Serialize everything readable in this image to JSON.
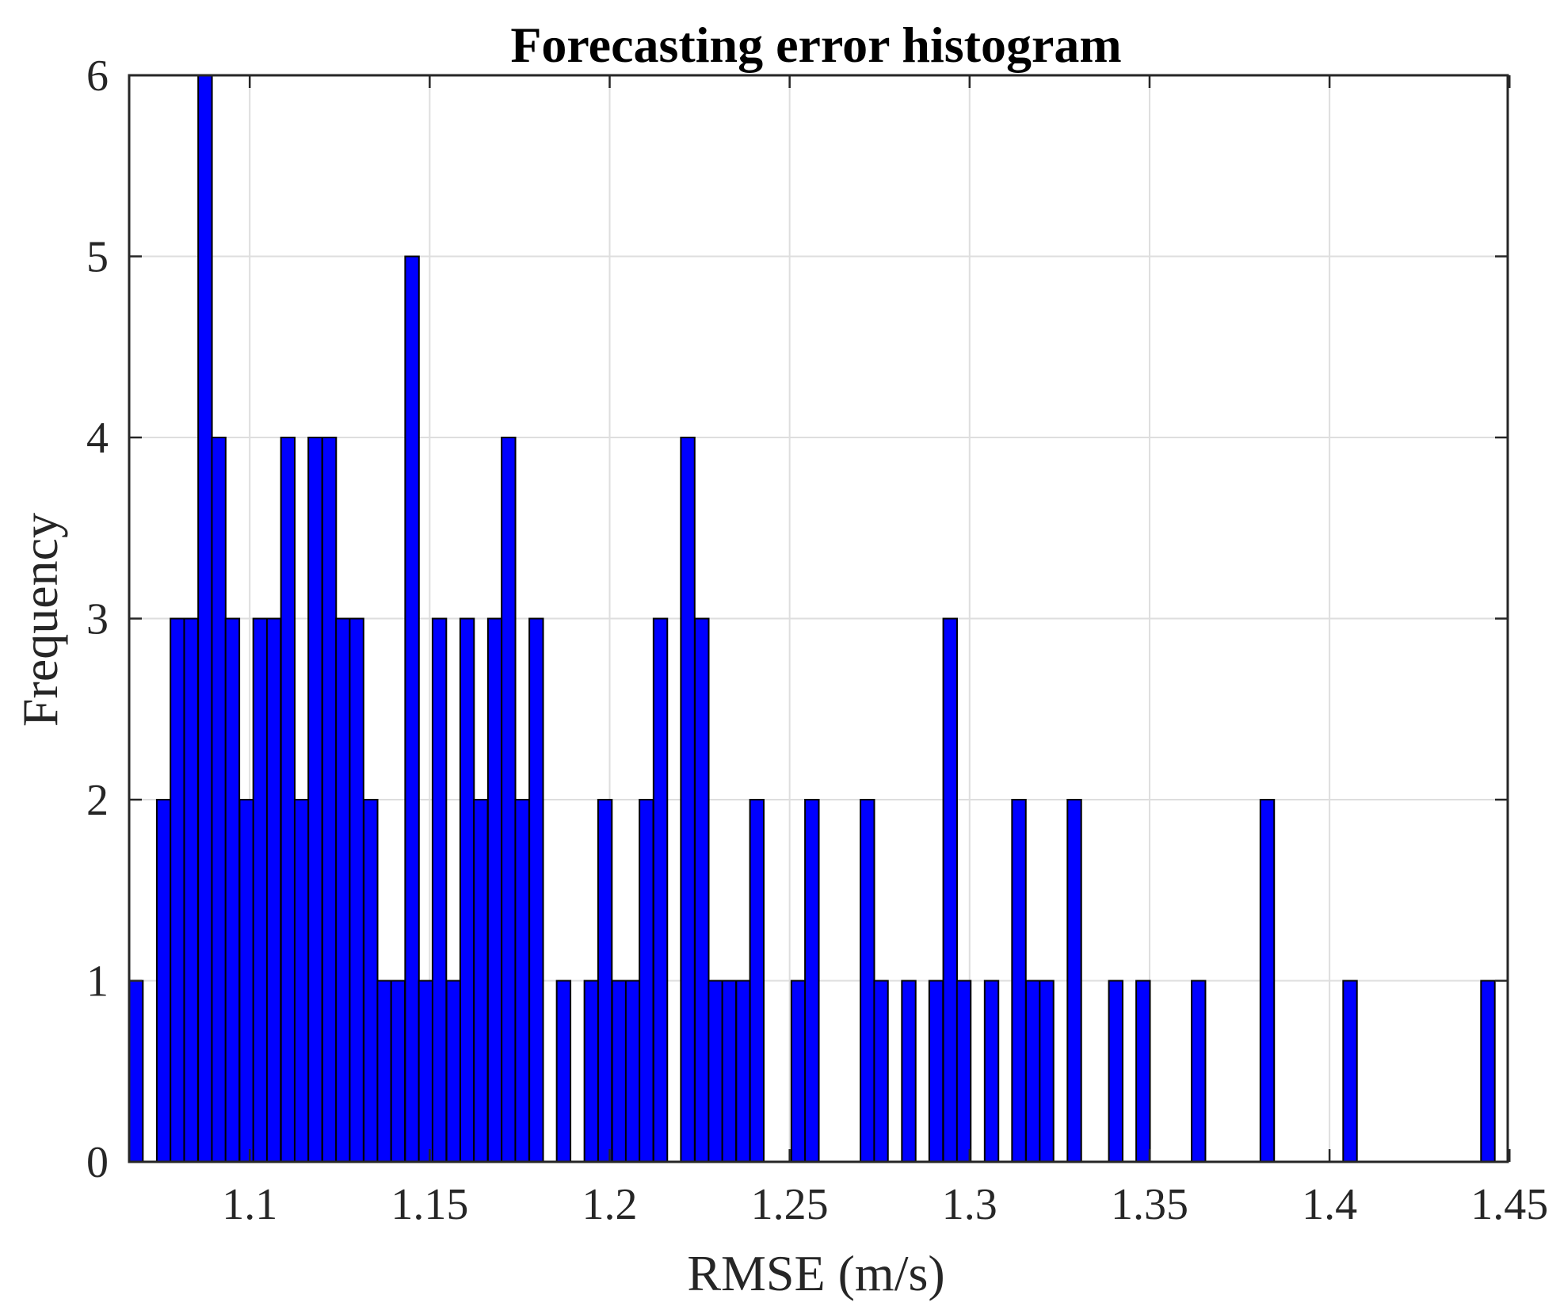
{
  "chart_data": {
    "type": "bar",
    "title": "Forecasting error histogram",
    "xlabel": "RMSE (m/s)",
    "ylabel": "Frequency",
    "xlim": [
      1.0665,
      1.4495
    ],
    "ylim": [
      0,
      6
    ],
    "grid": true,
    "bin_width": 0.00383,
    "xticks": [
      1.1,
      1.15,
      1.2,
      1.25,
      1.3,
      1.35,
      1.4,
      1.45
    ],
    "xtick_labels": [
      "1.1",
      "1.15",
      "1.2",
      "1.25",
      "1.3",
      "1.35",
      "1.4",
      "1.45"
    ],
    "yticks": [
      0,
      1,
      2,
      3,
      4,
      5,
      6
    ],
    "ytick_labels": [
      "0",
      "1",
      "2",
      "3",
      "4",
      "5",
      "6"
    ],
    "colors": {
      "bar_fill": "#0000ff",
      "bar_edge": "#000000",
      "grid": "#dedede",
      "axis": "#262626"
    },
    "bins": [
      {
        "x": 1.0684,
        "count": 1
      },
      {
        "x": 1.0761,
        "count": 2
      },
      {
        "x": 1.0799,
        "count": 3
      },
      {
        "x": 1.0837,
        "count": 3
      },
      {
        "x": 1.0876,
        "count": 6
      },
      {
        "x": 1.0914,
        "count": 4
      },
      {
        "x": 1.0952,
        "count": 3
      },
      {
        "x": 1.0991,
        "count": 2
      },
      {
        "x": 1.1029,
        "count": 3
      },
      {
        "x": 1.1067,
        "count": 3
      },
      {
        "x": 1.1106,
        "count": 4
      },
      {
        "x": 1.1144,
        "count": 2
      },
      {
        "x": 1.1182,
        "count": 4
      },
      {
        "x": 1.1221,
        "count": 4
      },
      {
        "x": 1.1259,
        "count": 3
      },
      {
        "x": 1.1297,
        "count": 3
      },
      {
        "x": 1.1336,
        "count": 2
      },
      {
        "x": 1.1374,
        "count": 1
      },
      {
        "x": 1.1412,
        "count": 1
      },
      {
        "x": 1.1451,
        "count": 5
      },
      {
        "x": 1.1489,
        "count": 1
      },
      {
        "x": 1.1527,
        "count": 3
      },
      {
        "x": 1.1566,
        "count": 1
      },
      {
        "x": 1.1604,
        "count": 3
      },
      {
        "x": 1.1642,
        "count": 2
      },
      {
        "x": 1.1681,
        "count": 3
      },
      {
        "x": 1.1719,
        "count": 4
      },
      {
        "x": 1.1757,
        "count": 2
      },
      {
        "x": 1.1796,
        "count": 3
      },
      {
        "x": 1.1872,
        "count": 1
      },
      {
        "x": 1.1949,
        "count": 1
      },
      {
        "x": 1.1987,
        "count": 2
      },
      {
        "x": 1.2026,
        "count": 1
      },
      {
        "x": 1.2064,
        "count": 1
      },
      {
        "x": 1.2102,
        "count": 2
      },
      {
        "x": 1.2141,
        "count": 3
      },
      {
        "x": 1.2217,
        "count": 4
      },
      {
        "x": 1.2256,
        "count": 3
      },
      {
        "x": 1.2294,
        "count": 1
      },
      {
        "x": 1.2332,
        "count": 1
      },
      {
        "x": 1.2371,
        "count": 1
      },
      {
        "x": 1.2409,
        "count": 2
      },
      {
        "x": 1.2524,
        "count": 1
      },
      {
        "x": 1.2562,
        "count": 2
      },
      {
        "x": 1.2716,
        "count": 2
      },
      {
        "x": 1.2754,
        "count": 1
      },
      {
        "x": 1.2831,
        "count": 1
      },
      {
        "x": 1.2907,
        "count": 1
      },
      {
        "x": 1.2946,
        "count": 3
      },
      {
        "x": 1.2984,
        "count": 1
      },
      {
        "x": 1.3061,
        "count": 1
      },
      {
        "x": 1.3137,
        "count": 2
      },
      {
        "x": 1.3176,
        "count": 1
      },
      {
        "x": 1.3214,
        "count": 1
      },
      {
        "x": 1.3291,
        "count": 2
      },
      {
        "x": 1.3406,
        "count": 1
      },
      {
        "x": 1.3482,
        "count": 1
      },
      {
        "x": 1.3636,
        "count": 1
      },
      {
        "x": 1.3827,
        "count": 2
      },
      {
        "x": 1.4057,
        "count": 1
      },
      {
        "x": 1.444,
        "count": 1
      }
    ]
  }
}
